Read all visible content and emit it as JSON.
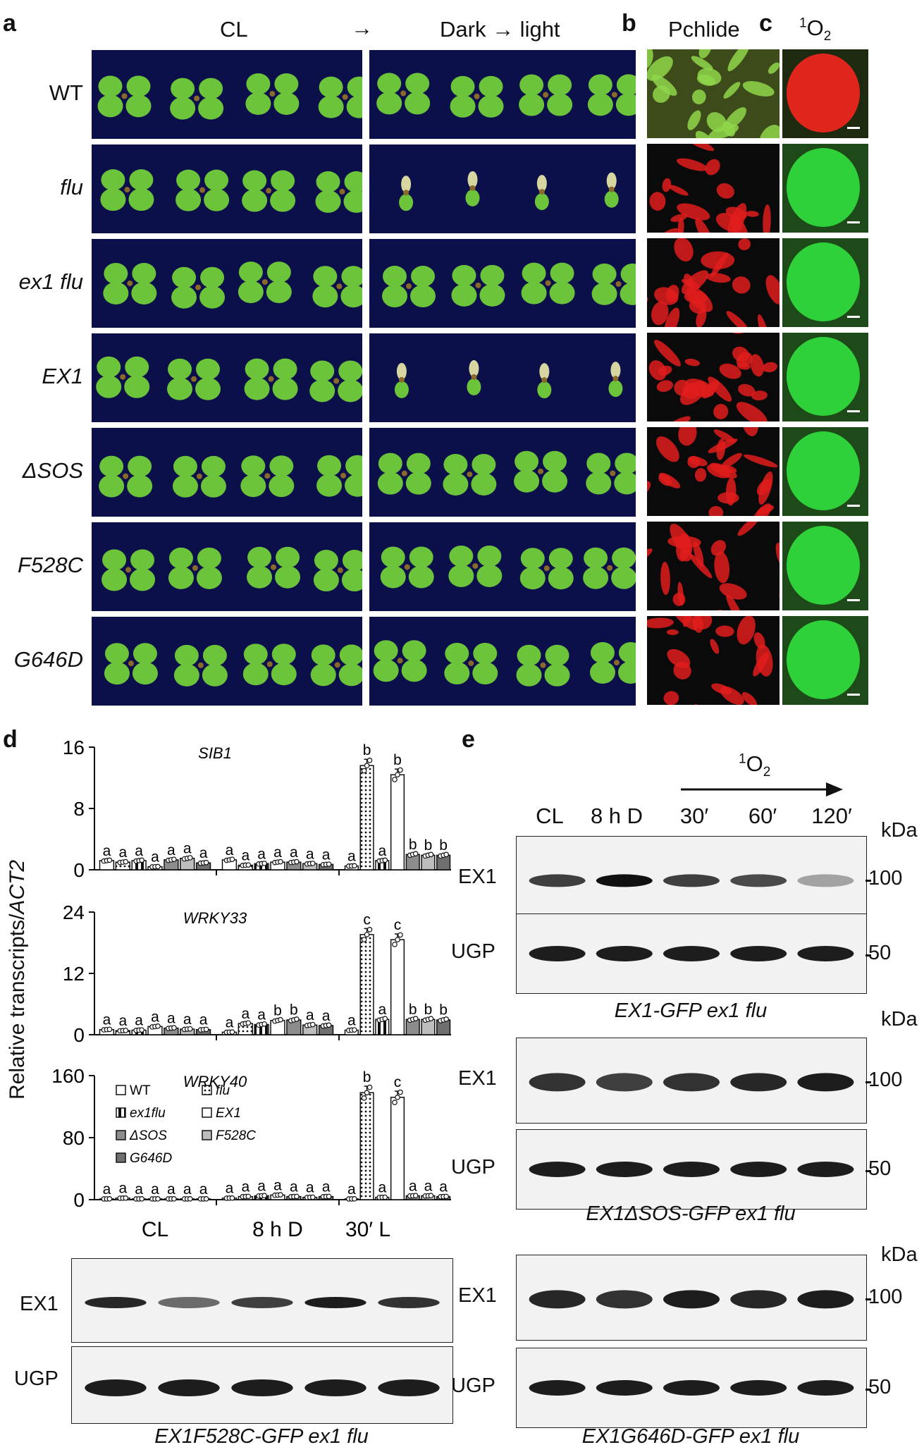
{
  "panels": {
    "a": "a",
    "b": "b",
    "c": "c",
    "d": "d",
    "e": "e"
  },
  "panel_a": {
    "col1": "CL",
    "arrow": "→",
    "col2": "Dark → light",
    "genotypes": [
      "WT",
      "flu",
      "ex1 flu",
      "EX1",
      "ΔSOS",
      "F528C",
      "G646D"
    ]
  },
  "panel_b": {
    "title": "Pchlide"
  },
  "panel_c": {
    "title_sup": "1",
    "title_main": "O",
    "title_sub": "2"
  },
  "panel_d": {
    "ylabel": "Relative transcripts/",
    "ylabel_it": "ACT2",
    "groups": [
      "CL",
      "8 h D",
      "30′ L"
    ],
    "legend": [
      "WT",
      "flu",
      "ex1flu",
      "EX1",
      "ΔSOS",
      "F528C",
      "G646D"
    ],
    "blot_labels": [
      "EX1",
      "UGP"
    ],
    "blot_caption": "EX1F528C-GFP ex1 flu"
  },
  "chart_data": [
    {
      "type": "bar",
      "title": "SIB1",
      "categories": [
        "CL",
        "8 h D",
        "30′ L"
      ],
      "yticks": [
        "16",
        "8",
        "0"
      ],
      "ylim": [
        0,
        16
      ],
      "series": [
        {
          "name": "WT",
          "values": [
            1.2,
            1.3,
            0.5
          ]
        },
        {
          "name": "flu",
          "values": [
            1.0,
            0.6,
            13.6
          ]
        },
        {
          "name": "ex1flu",
          "values": [
            1.2,
            0.8,
            1.2
          ]
        },
        {
          "name": "EX1",
          "values": [
            0.4,
            1.0,
            12.4
          ]
        },
        {
          "name": "ΔSOS",
          "values": [
            1.3,
            1.0,
            2.0
          ]
        },
        {
          "name": "F528C",
          "values": [
            1.5,
            0.8,
            1.9
          ]
        },
        {
          "name": "G646D",
          "values": [
            0.9,
            0.7,
            1.9
          ]
        }
      ],
      "letters": [
        [
          "a",
          "a",
          "a",
          "a",
          "a",
          "a",
          "a"
        ],
        [
          "a",
          "a",
          "a",
          "a",
          "a",
          "a",
          "a"
        ],
        [
          "a",
          "b",
          "a",
          "b",
          "b",
          "b",
          "b"
        ]
      ]
    },
    {
      "type": "bar",
      "title": "WRKY33",
      "categories": [
        "CL",
        "8 h D",
        "30′ L"
      ],
      "yticks": [
        "24",
        "12",
        "0"
      ],
      "ylim": [
        0,
        24
      ],
      "series": [
        {
          "name": "WT",
          "values": [
            1.0,
            0.5,
            0.9
          ]
        },
        {
          "name": "flu",
          "values": [
            0.8,
            2.2,
            19.6
          ]
        },
        {
          "name": "ex1flu",
          "values": [
            0.9,
            2.0,
            3.0
          ]
        },
        {
          "name": "EX1",
          "values": [
            1.6,
            2.8,
            18.6
          ]
        },
        {
          "name": "ΔSOS",
          "values": [
            1.3,
            2.9,
            3.0
          ]
        },
        {
          "name": "F528C",
          "values": [
            1.1,
            1.9,
            3.0
          ]
        },
        {
          "name": "G646D",
          "values": [
            1.0,
            1.8,
            2.9
          ]
        }
      ],
      "letters": [
        [
          "a",
          "a",
          "a",
          "a",
          "a",
          "a",
          "a"
        ],
        [
          "a",
          "a",
          "a",
          "b",
          "b",
          "a",
          "a"
        ],
        [
          "a",
          "c",
          "a",
          "c",
          "b",
          "b",
          "b"
        ]
      ]
    },
    {
      "type": "bar",
      "title": "WRKY40",
      "categories": [
        "CL",
        "8 h D",
        "30′ L"
      ],
      "yticks": [
        "160",
        "80",
        "0"
      ],
      "ylim": [
        0,
        160
      ],
      "series": [
        {
          "name": "WT",
          "values": [
            1,
            2,
            1
          ]
        },
        {
          "name": "flu",
          "values": [
            2,
            4,
            138
          ]
        },
        {
          "name": "ex1flu",
          "values": [
            1,
            5,
            3
          ]
        },
        {
          "name": "EX1",
          "values": [
            1,
            6,
            132
          ]
        },
        {
          "name": "ΔSOS",
          "values": [
            1,
            4,
            5
          ]
        },
        {
          "name": "F528C",
          "values": [
            1,
            3,
            5
          ]
        },
        {
          "name": "G646D",
          "values": [
            1,
            4,
            4
          ]
        }
      ],
      "letters": [
        [
          "a",
          "a",
          "a",
          "a",
          "a",
          "a",
          "a"
        ],
        [
          "a",
          "a",
          "a",
          "a",
          "a",
          "a",
          "a"
        ],
        [
          "a",
          "b",
          "a",
          "c",
          "a",
          "a",
          "a"
        ]
      ]
    }
  ],
  "panel_e": {
    "so_sup": "1",
    "so_main": "O",
    "so_sub": "2",
    "lanes": [
      "CL",
      "8 h D",
      "30′",
      "60′",
      "120′"
    ],
    "kda": "kDa",
    "mw_top": "100",
    "mw_bottom": "50",
    "blot_labels": [
      "EX1",
      "UGP"
    ],
    "captions": [
      "EX1-GFP ex1 flu",
      "EX1ΔSOS-GFP ex1 flu",
      "EX1G646D-GFP ex1 flu"
    ]
  },
  "colors": {
    "photo_bg": "#0b0f4a",
    "leaf": "#6cc43a",
    "pchlide": "#e01c1c",
    "singlet_green": "#2fd13a",
    "singlet_red": "#e0261c"
  }
}
